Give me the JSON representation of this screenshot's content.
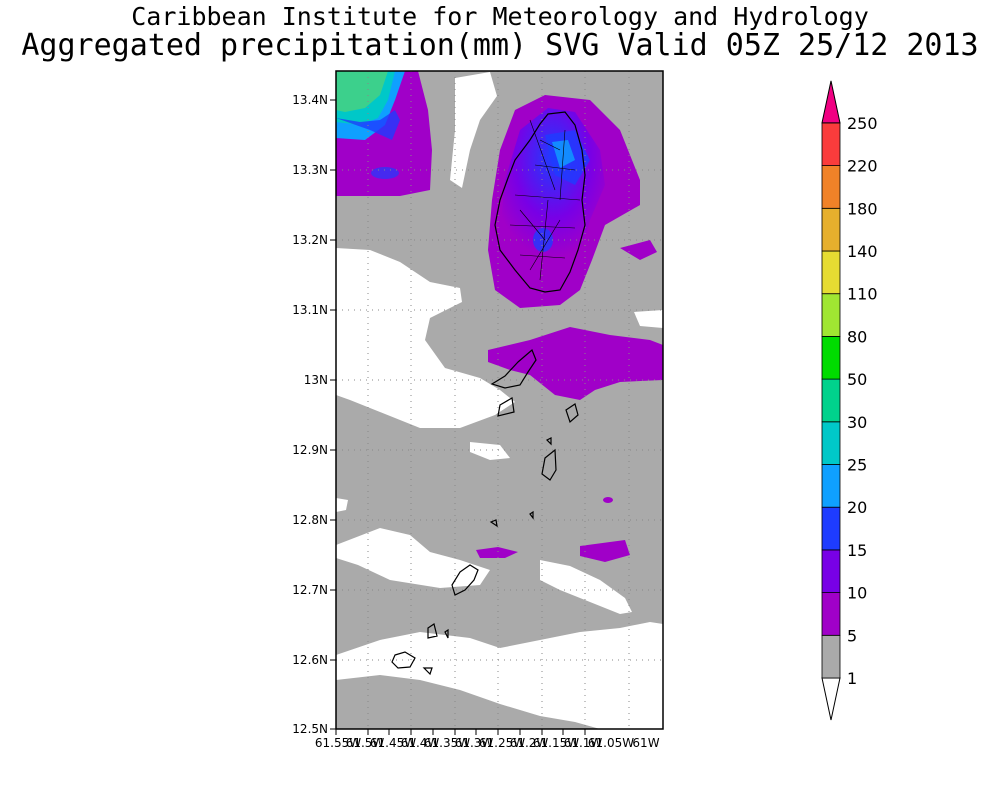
{
  "title_line1": "Caribbean Institute for Meteorology and Hydrology",
  "title_line2": "Aggregated precipitation(mm) SVG Valid 05Z 25/12 2013",
  "map": {
    "lat_labels": [
      "13.4N",
      "13.3N",
      "13.2N",
      "13.1N",
      "13N",
      "12.9N",
      "12.8N",
      "12.7N",
      "12.6N",
      "12.5N"
    ],
    "lon_labels": [
      "61.55W",
      "61.5W",
      "61.45W",
      "61.4W",
      "61.35W",
      "61.3W",
      "61.25W",
      "61.2W",
      "61.15W",
      "61.1W",
      "61.05W",
      "61W"
    ],
    "background_color": "#aaaaaa"
  },
  "colorbar": {
    "levels": [
      "1",
      "5",
      "10",
      "15",
      "20",
      "25",
      "30",
      "50",
      "80",
      "110",
      "140",
      "180",
      "220",
      "250"
    ],
    "colors": [
      "#aaaaaa",
      "#a000c8",
      "#7800e6",
      "#1e3cff",
      "#0fa0ff",
      "#00c8c8",
      "#00d28c",
      "#00dc00",
      "#a0e632",
      "#e6dc32",
      "#e6af2d",
      "#f08228",
      "#fa3c3c",
      "#f00082"
    ]
  }
}
